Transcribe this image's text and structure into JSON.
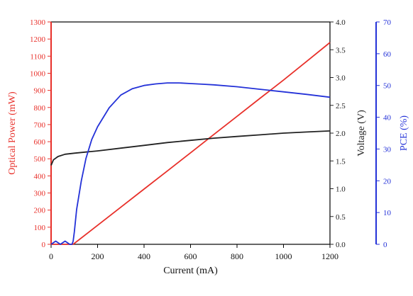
{
  "chart_data": {
    "type": "line",
    "title": "",
    "xlabel": "Current (mA)",
    "xlim": [
      0,
      1200
    ],
    "xticks": [
      0,
      200,
      400,
      600,
      800,
      1000,
      1200
    ],
    "grid": false,
    "legend": "none",
    "axes": [
      {
        "id": "power",
        "side": "left",
        "label": "Optical Power (mW)",
        "color": "#e8302a",
        "lim": [
          0,
          1300
        ],
        "ticks": [
          0,
          100,
          200,
          300,
          400,
          500,
          600,
          700,
          800,
          900,
          1000,
          1100,
          1200,
          1300
        ],
        "tick_labels": [
          "0",
          "100",
          "200",
          "300",
          "400",
          "500",
          "600",
          "700",
          "800",
          "900",
          "1000",
          "1100",
          "1200",
          "1300"
        ]
      },
      {
        "id": "voltage",
        "side": "right",
        "label": "Voltage (V)",
        "color": "#222222",
        "lim": [
          0,
          4.0
        ],
        "ticks": [
          0,
          0.5,
          1.0,
          1.5,
          2.0,
          2.5,
          3.0,
          3.5,
          4.0
        ],
        "tick_labels": [
          "0.0",
          "0.5",
          "1.0",
          "1.5",
          "2.0",
          "2.5",
          "3.0",
          "3.5",
          "4.0"
        ]
      },
      {
        "id": "pce",
        "side": "right-outer",
        "label": "PCE (%)",
        "color": "#2432d8",
        "lim": [
          0,
          70
        ],
        "ticks": [
          0,
          10,
          20,
          30,
          40,
          50,
          60,
          70
        ],
        "tick_labels": [
          "0",
          "10",
          "20",
          "30",
          "40",
          "50",
          "60",
          "70"
        ]
      }
    ],
    "series": [
      {
        "axis": "power",
        "color": "#e8302a",
        "x": [
          0,
          95,
          200,
          300,
          400,
          500,
          600,
          700,
          800,
          900,
          1000,
          1100,
          1200
        ],
        "y": [
          0,
          0,
          111,
          217,
          323,
          429,
          535,
          642,
          748,
          855,
          960,
          1070,
          1180
        ]
      },
      {
        "axis": "voltage",
        "color": "#222222",
        "x": [
          0,
          10,
          30,
          60,
          100,
          150,
          200,
          300,
          400,
          500,
          600,
          700,
          800,
          900,
          1000,
          1100,
          1200
        ],
        "y": [
          1.42,
          1.52,
          1.58,
          1.62,
          1.64,
          1.66,
          1.68,
          1.73,
          1.78,
          1.83,
          1.87,
          1.91,
          1.94,
          1.97,
          2.0,
          2.02,
          2.04
        ]
      },
      {
        "axis": "pce",
        "color": "#2432d8",
        "x": [
          0,
          20,
          40,
          60,
          80,
          90,
          95,
          100,
          110,
          130,
          150,
          175,
          200,
          250,
          300,
          350,
          400,
          450,
          500,
          550,
          600,
          650,
          700,
          800,
          900,
          1000,
          1100,
          1200
        ],
        "y": [
          0,
          1,
          0,
          1,
          0,
          0,
          1,
          4,
          11,
          20,
          27,
          33,
          37,
          43,
          47,
          49,
          50,
          50.5,
          50.8,
          50.8,
          50.6,
          50.4,
          50.2,
          49.6,
          48.8,
          48,
          47.2,
          46.3
        ]
      }
    ]
  }
}
